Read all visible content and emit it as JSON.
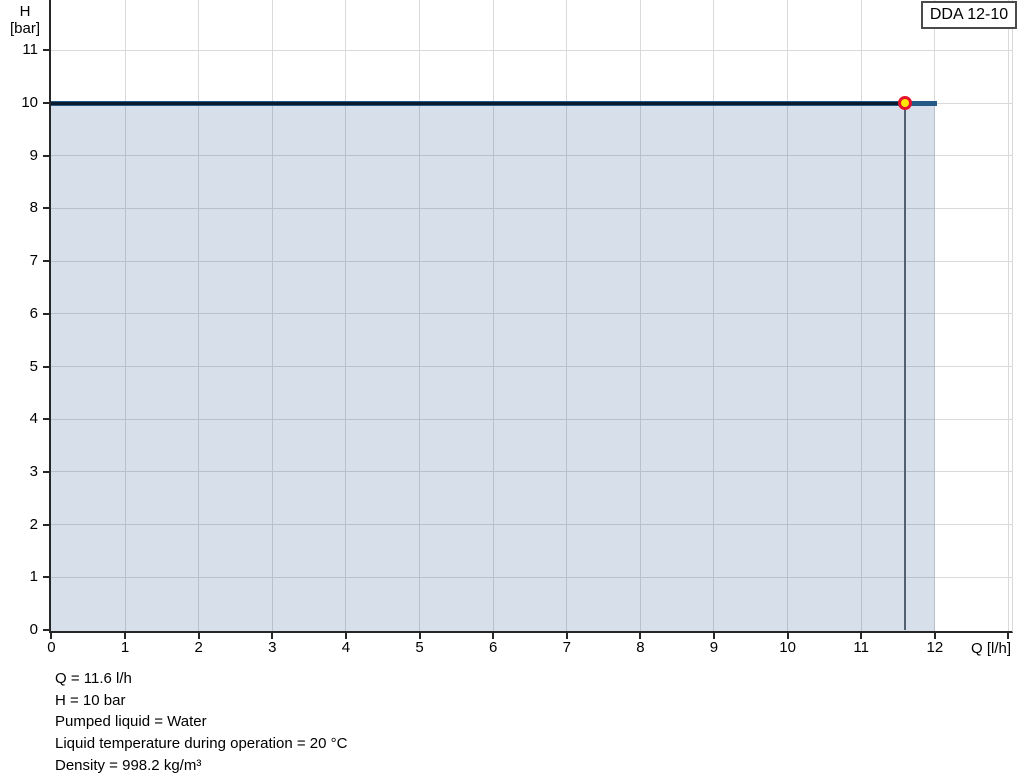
{
  "chart_data": {
    "type": "line",
    "xlabel": "Q [l/h]",
    "ylabel_lines": [
      "H",
      "[bar]"
    ],
    "legend": [
      "DDA 12-10"
    ],
    "legend_position": "top-right",
    "xlim": [
      0,
      13.05
    ],
    "ylim": [
      0,
      11.97
    ],
    "x_ticks": [
      0,
      1,
      2,
      3,
      4,
      5,
      6,
      7,
      8,
      9,
      10,
      11,
      12
    ],
    "x_tick_marks": [
      0,
      1,
      2,
      3,
      4,
      5,
      6,
      7,
      8,
      9,
      10,
      11,
      12,
      13
    ],
    "y_ticks": [
      0,
      1,
      2,
      3,
      4,
      5,
      6,
      7,
      8,
      9,
      10,
      11
    ],
    "x_grid": [
      1,
      2,
      3,
      4,
      5,
      6,
      7,
      8,
      9,
      10,
      11,
      12,
      13
    ],
    "y_grid": [
      1,
      2,
      3,
      4,
      5,
      6,
      7,
      8,
      9,
      10,
      11
    ],
    "grid": true,
    "series": [
      {
        "name": "DDA 12-10",
        "x": [
          0,
          12
        ],
        "y": [
          10,
          10
        ],
        "fill_to_zero": true
      }
    ],
    "duty_point": {
      "q": 11.6,
      "h": 10
    },
    "colors": {
      "curve": "#255a87",
      "curve_dark": "#0a1c2c",
      "fill": "rgba(53,99,148,0.20)",
      "duty_line": "#51616f",
      "marker_fill": "#ffe800",
      "marker_ring": "#e8112d",
      "grid": "#d9d9d9",
      "axis": "#262626",
      "background": "#ffffff"
    }
  },
  "info_lines": [
    "Q = 11.6 l/h",
    "H = 10 bar",
    "Pumped liquid = Water",
    "Liquid temperature during operation = 20 °C",
    "Density = 998.2 kg/m³"
  ]
}
